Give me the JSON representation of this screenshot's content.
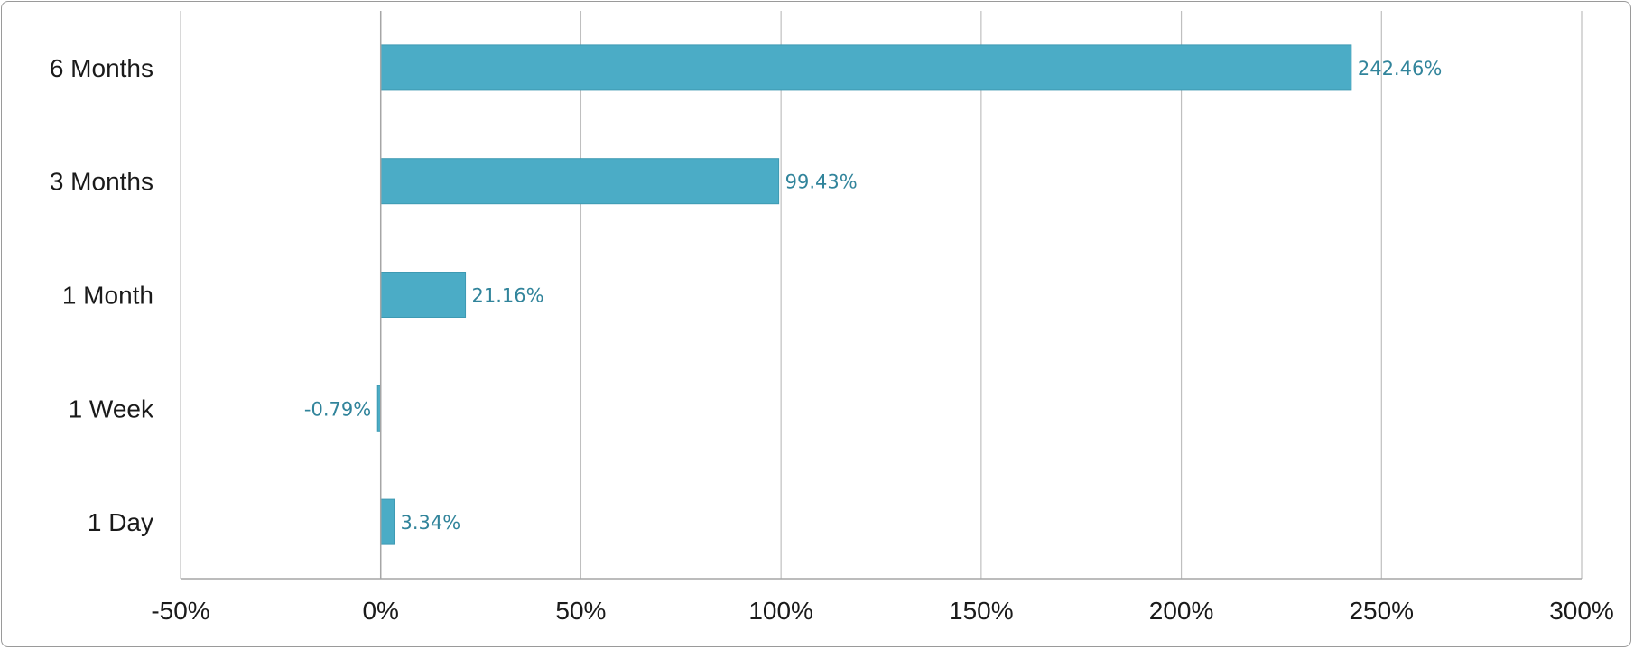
{
  "chart_data": {
    "type": "bar",
    "orientation": "horizontal",
    "categories": [
      "6 Months",
      "3 Months",
      "1 Month",
      "1 Week",
      "1 Day"
    ],
    "values": [
      242.46,
      99.43,
      21.16,
      -0.79,
      3.34
    ],
    "data_labels": [
      "242.46%",
      "99.43%",
      "21.16%",
      "-0.79%",
      "3.34%"
    ],
    "xlim": [
      -50,
      300
    ],
    "x_ticks": [
      -50,
      0,
      50,
      100,
      150,
      200,
      250,
      300
    ],
    "x_tick_labels": [
      "-50%",
      "0%",
      "50%",
      "100%",
      "150%",
      "200%",
      "250%",
      "300%"
    ],
    "grid": "vertical",
    "legend": "none",
    "bar_color": "#4BACC6",
    "label_color": "#31849B",
    "grid_color": "#BFBFBF"
  }
}
